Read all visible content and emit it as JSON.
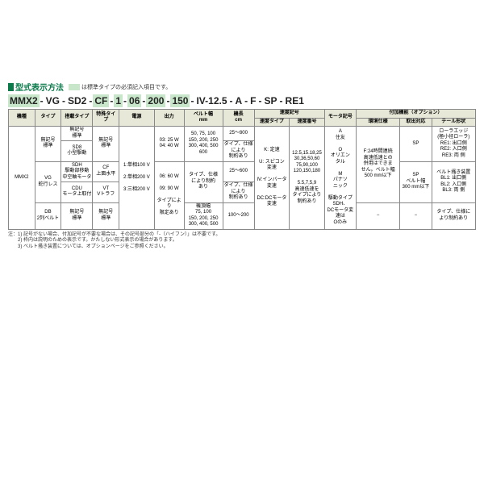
{
  "title": "型式表示方法",
  "subtitle": "は標準タイプの必須記入項目です。",
  "model": [
    "MMX2",
    "VG",
    "SD2",
    "CF",
    "1",
    "06",
    "200",
    "150",
    "IV-12.5",
    "A",
    "F",
    "SP",
    "RE1"
  ],
  "highlight_idx": [
    0,
    3,
    4,
    5,
    6,
    7
  ],
  "headers": {
    "c1": "機種",
    "c2": "タイプ",
    "c3": "搭載タイプ",
    "c4": "特殊タイプ",
    "c5": "電源",
    "c6": "出力",
    "c7": "ベルト幅\nmm",
    "c8": "機長\ncm",
    "c9": "速度記号",
    "c9a": "速度タイプ",
    "c9b": "速度番号",
    "c10": "モータ記号",
    "c11": "付加機能（オプション）",
    "c11a": "環境仕様",
    "c11b": "取出対応",
    "c11c": "テール形状"
  },
  "rows": {
    "r1": {
      "c1": "MMX2",
      "c2": "無記号\n標準",
      "c2b": "VG\n蛇行レス",
      "c2c": "DB\n2列ベルト",
      "c3": "無記号\n標準",
      "c3b": "SD8\n小型駆動",
      "c3c": "SDH\n駆動部移動\n中空軸モータ",
      "c3d": "CDU\nモータ上取付",
      "c4": "無記号\n標準",
      "c4b": "CF\n上面水平",
      "c4c": "VT\nVトラフ",
      "c5": "1:単相100 V",
      "c5b": "2:単相200 V",
      "c5c": "3:三相200 V",
      "c6": "03: 25 W",
      "c6b": "04: 40 W",
      "c6c": "06: 60 W",
      "c6d": "09: 90 W",
      "c6e": "タイプにより\n限定あり",
      "c7": "50, 75, 100\n150, 200, 250\n300, 400, 500\n600",
      "c7b": "タイプ、仕様\nにより制約\nあり",
      "c7c": "機頂幅\n75, 100\n150, 200, 250\n300, 400, 500",
      "c8": "25〜800",
      "c8b": "タイプ、仕様\nにより\n制約あり",
      "c8c": "25〜600",
      "c8d": "タイプ、仕様\nにより\n制約あり",
      "c8e": "100〜200",
      "c9a": "K: 定速",
      "c9b": "U: スピコン\n変速",
      "c9c": "IV:インバータ\n変速",
      "c9d": "DC:DCモータ\n変速",
      "c9n": "12.5,15.18,25\n30,36,50,60\n75,90,100\n120,150,180",
      "c9n2": "5.5,7,5,9\n高速低速を\nタイプにより\n制約あり",
      "c10": "A\n住友",
      "c10b": "O\nオリエン\nタル",
      "c10c": "M\nパナソ\nニック",
      "c10d": "駆動タイプSDH、\nDCモータ変速は\nOのみ",
      "c11a": "F:24時間連続\n高速低速との\n併用はできま\nせん。ベルト幅\n500 mm以下",
      "c11b": "SP",
      "c11b2": "SP\nベルト幅\n300 mm以下",
      "c11c": "ローラエッジ\n(極小径ローラ)\nRE1: 出口側\nRE2: 入口側\nRE3: 両  側",
      "c11c2": "ベルト掻き装置\nBL1: 出口側\nBL2: 入口側\nBL3: 両  側",
      "c11c3": "タイプ、仕様に\nより制約あり",
      "dash": "−"
    }
  },
  "notes": [
    "注：1) 記号がない場合、付加記号が不要な場合は、その記号部分の「-（ハイフン）」は不要です。",
    "　　2) 枠内は説明のための表示です。かたしない形式表示の場合があります。",
    "　　3) ベルト掻き装置については、オプションページをご参照ください。"
  ],
  "colors": {
    "accent": "#0a7a4a",
    "highlight": "#c8e6c9",
    "header_bg": "#e8e8d8",
    "border": "#888"
  }
}
